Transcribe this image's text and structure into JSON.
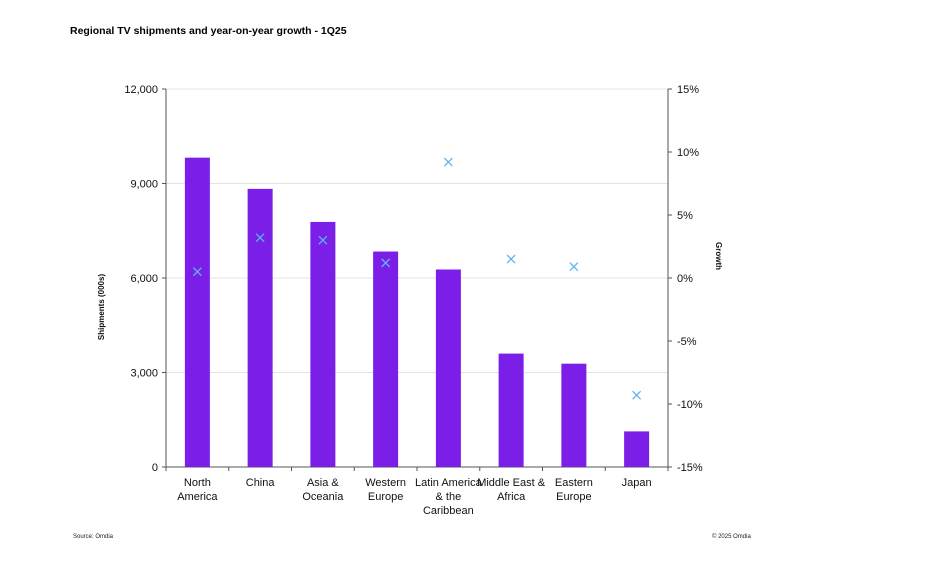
{
  "chart_data": {
    "type": "bar",
    "title": "Regional TV shipments and year-on-year growth - 1Q25",
    "ylabel": "Shipments (000s)",
    "y2label": "Growth",
    "source": "Source: Omdia",
    "copyright": "© 2025 Omdia",
    "categories": [
      [
        "North",
        "America"
      ],
      [
        "China"
      ],
      [
        "Asia &",
        "Oceania"
      ],
      [
        "Western",
        "Europe"
      ],
      [
        "Latin America",
        "& the",
        "Caribbean"
      ],
      [
        "Middle East &",
        "Africa"
      ],
      [
        "Eastern",
        "Europe"
      ],
      [
        "Japan"
      ]
    ],
    "series": [
      {
        "type": "bar",
        "axis": "left",
        "values": [
          9820,
          8830,
          7780,
          6840,
          6270,
          3600,
          3280,
          1130
        ]
      },
      {
        "type": "scatter",
        "axis": "right",
        "values": [
          0.5,
          3.2,
          3.0,
          1.2,
          9.2,
          1.5,
          0.9,
          -9.3
        ]
      }
    ],
    "ylim": [
      0,
      12000
    ],
    "yticks": [
      "0",
      "3,000",
      "6,000",
      "9,000",
      "12,000"
    ],
    "y2lim": [
      -15,
      15
    ],
    "y2ticks": [
      "-15%",
      "-10%",
      "-5%",
      "0%",
      "5%",
      "10%",
      "15%"
    ],
    "grid": true,
    "colors": {
      "bar": "#7a1ee8",
      "marker": "#5fb3f0",
      "grid": "#e3e3e3",
      "axis": "#555555"
    }
  }
}
